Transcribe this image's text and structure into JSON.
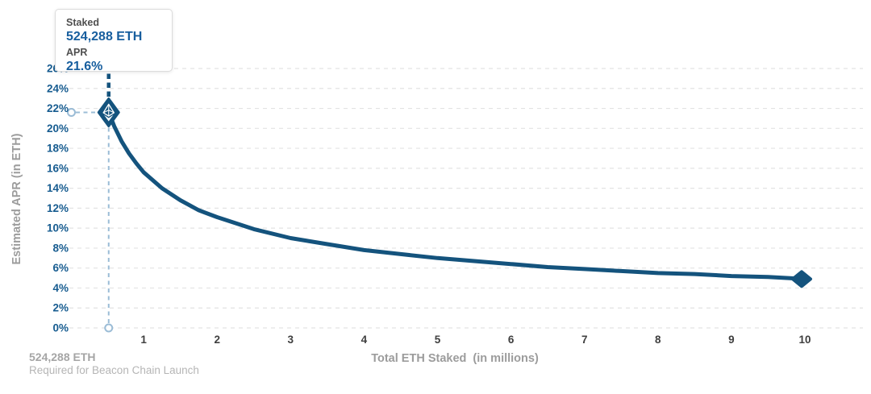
{
  "colors": {
    "curve_blue": "#14537D",
    "label_blue": "#175C90",
    "tick_gray": "#3F3F3F",
    "axis_title_gray": "#9C9C9C",
    "grid_gray": "#E3E3E3",
    "connector_blue": "#9BBCD6",
    "marker_glyph_white": "#FFFFFF"
  },
  "tooltip": {
    "staked_label": "Staked",
    "staked_value": "524,288 ETH",
    "apr_label": "APR",
    "apr_value": "21.6%"
  },
  "footnote": {
    "line1": "524,288 ETH",
    "line2": "Required for Beacon Chain Launch"
  },
  "chart_data": {
    "type": "line",
    "title": "",
    "xlabel": "Total ETH Staked  (in millions)",
    "ylabel": "Estimated APR (in ETH)",
    "xlim": [
      0,
      10.8
    ],
    "ylim": [
      0,
      26
    ],
    "grid": "horizontal-dashed",
    "legend": "none",
    "x_ticks": [
      1,
      2,
      3,
      4,
      5,
      6,
      7,
      8,
      9,
      10
    ],
    "y_ticks": [
      0,
      2,
      4,
      6,
      8,
      10,
      12,
      14,
      16,
      18,
      20,
      22,
      24,
      26
    ],
    "y_tick_labels": [
      "0%",
      "2%",
      "4%",
      "6%",
      "8%",
      "10%",
      "12%",
      "14%",
      "16%",
      "18%",
      "20%",
      "22%",
      "24%",
      "26%"
    ],
    "series": [
      {
        "name": "Estimated APR (in ETH)",
        "x": [
          0.524288,
          0.6,
          0.7,
          0.8,
          0.9,
          1,
          1.25,
          1.5,
          1.75,
          2,
          2.5,
          3,
          3.5,
          4,
          4.5,
          5,
          5.5,
          6,
          6.5,
          7,
          7.5,
          8,
          8.5,
          9,
          9.5,
          10
        ],
        "y": [
          21.6,
          20.2,
          18.7,
          17.5,
          16.5,
          15.6,
          14.0,
          12.8,
          11.8,
          11.1,
          9.9,
          9.0,
          8.4,
          7.8,
          7.4,
          7.0,
          6.7,
          6.4,
          6.1,
          5.9,
          5.7,
          5.5,
          5.4,
          5.2,
          5.1,
          4.9
        ]
      }
    ],
    "highlighted_point": {
      "x": 0.524288,
      "y": 21.6,
      "marker": "ethereum-logo-diamond"
    },
    "end_point": {
      "x": 10,
      "y": 4.9,
      "marker": "diamond"
    },
    "reference_lines": {
      "x_value": 0.524288,
      "y_value": 21.6,
      "style": "light-blue-dashed-with-axis-circles"
    }
  }
}
